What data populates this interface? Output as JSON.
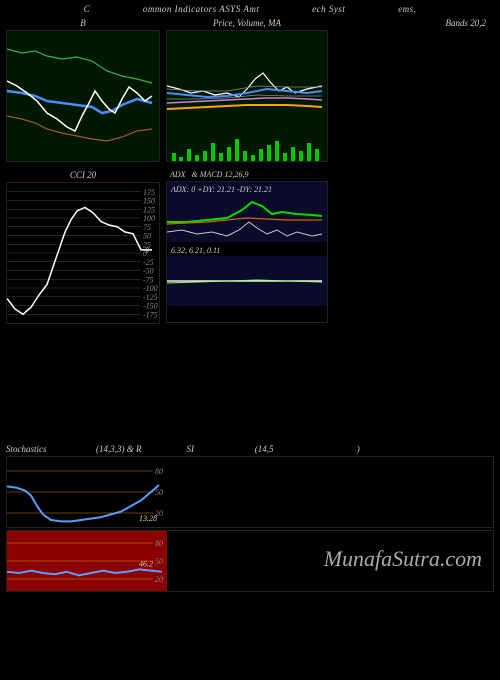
{
  "header": {
    "left": "C",
    "mid1": "ommon Indicators ASYS Amt",
    "mid2": "ech Syst",
    "right": "ems,"
  },
  "panels": {
    "bbands": {
      "title": "B",
      "title_right": "Bands 20,2",
      "width": 152,
      "height": 130,
      "bg": "#001800",
      "series": {
        "upper": {
          "color": "#3cb043",
          "width": 1.2,
          "points": [
            [
              0,
              18
            ],
            [
              15,
              22
            ],
            [
              28,
              20
            ],
            [
              40,
              25
            ],
            [
              55,
              28
            ],
            [
              70,
              26
            ],
            [
              85,
              30
            ],
            [
              100,
              40
            ],
            [
              115,
              45
            ],
            [
              130,
              48
            ],
            [
              145,
              52
            ]
          ]
        },
        "mid": {
          "color": "#4a8cff",
          "width": 2.5,
          "points": [
            [
              0,
              60
            ],
            [
              15,
              62
            ],
            [
              28,
              65
            ],
            [
              40,
              70
            ],
            [
              55,
              72
            ],
            [
              70,
              74
            ],
            [
              85,
              76
            ],
            [
              95,
              82
            ],
            [
              105,
              80
            ],
            [
              115,
              74
            ],
            [
              130,
              68
            ],
            [
              145,
              72
            ]
          ]
        },
        "lower": {
          "color": "#a05a2c",
          "width": 1.2,
          "points": [
            [
              0,
              85
            ],
            [
              15,
              88
            ],
            [
              28,
              92
            ],
            [
              40,
              98
            ],
            [
              55,
              102
            ],
            [
              70,
              105
            ],
            [
              85,
              108
            ],
            [
              100,
              110
            ],
            [
              115,
              106
            ],
            [
              130,
              100
            ],
            [
              145,
              98
            ]
          ]
        },
        "price": {
          "color": "#ffffff",
          "width": 1.5,
          "points": [
            [
              0,
              50
            ],
            [
              10,
              55
            ],
            [
              20,
              62
            ],
            [
              30,
              70
            ],
            [
              40,
              82
            ],
            [
              50,
              88
            ],
            [
              60,
              96
            ],
            [
              68,
              100
            ],
            [
              75,
              85
            ],
            [
              82,
              72
            ],
            [
              88,
              60
            ],
            [
              95,
              70
            ],
            [
              102,
              78
            ],
            [
              108,
              82
            ],
            [
              115,
              68
            ],
            [
              122,
              56
            ],
            [
              130,
              62
            ],
            [
              138,
              70
            ],
            [
              145,
              65
            ]
          ]
        }
      }
    },
    "price_ma": {
      "title": "Price, Volume, MA",
      "width": 160,
      "height": 130,
      "bg": "#001800",
      "series": {
        "price": {
          "color": "#ffffff",
          "width": 1.2,
          "points": [
            [
              0,
              55
            ],
            [
              12,
              58
            ],
            [
              24,
              62
            ],
            [
              36,
              60
            ],
            [
              48,
              64
            ],
            [
              60,
              62
            ],
            [
              72,
              66
            ],
            [
              80,
              58
            ],
            [
              88,
              48
            ],
            [
              96,
              42
            ],
            [
              104,
              52
            ],
            [
              112,
              60
            ],
            [
              120,
              56
            ],
            [
              128,
              62
            ],
            [
              140,
              58
            ],
            [
              155,
              55
            ]
          ]
        },
        "ma1": {
          "color": "#4a8cff",
          "width": 2,
          "points": [
            [
              0,
              62
            ],
            [
              20,
              64
            ],
            [
              40,
              66
            ],
            [
              60,
              65
            ],
            [
              80,
              62
            ],
            [
              100,
              58
            ],
            [
              120,
              60
            ],
            [
              140,
              62
            ],
            [
              155,
              60
            ]
          ]
        },
        "ma2": {
          "color": "#ffa500",
          "width": 2,
          "points": [
            [
              0,
              78
            ],
            [
              20,
              77
            ],
            [
              40,
              76
            ],
            [
              60,
              75
            ],
            [
              80,
              74
            ],
            [
              100,
              74
            ],
            [
              120,
              74
            ],
            [
              140,
              75
            ],
            [
              155,
              76
            ]
          ]
        },
        "ma3": {
          "color": "#c882d8",
          "width": 1.5,
          "points": [
            [
              0,
              72
            ],
            [
              20,
              71
            ],
            [
              40,
              70
            ],
            [
              60,
              69
            ],
            [
              80,
              68
            ],
            [
              100,
              67
            ],
            [
              120,
              67
            ],
            [
              140,
              68
            ],
            [
              155,
              69
            ]
          ]
        },
        "ma_thin1": {
          "color": "#888",
          "width": 0.8,
          "points": [
            [
              0,
              58
            ],
            [
              30,
              60
            ],
            [
              60,
              60
            ],
            [
              90,
              55
            ],
            [
              120,
              56
            ],
            [
              155,
              56
            ]
          ]
        },
        "ma_thin2": {
          "color": "#888",
          "width": 0.8,
          "points": [
            [
              0,
              68
            ],
            [
              30,
              68
            ],
            [
              60,
              67
            ],
            [
              90,
              64
            ],
            [
              120,
              65
            ],
            [
              155,
              65
            ]
          ]
        }
      },
      "volume": {
        "color": "#00c800",
        "bars": [
          [
            5,
            8
          ],
          [
            12,
            4
          ],
          [
            20,
            12
          ],
          [
            28,
            6
          ],
          [
            36,
            10
          ],
          [
            44,
            18
          ],
          [
            52,
            8
          ],
          [
            60,
            14
          ],
          [
            68,
            22
          ],
          [
            76,
            10
          ],
          [
            84,
            6
          ],
          [
            92,
            12
          ],
          [
            100,
            16
          ],
          [
            108,
            20
          ],
          [
            116,
            8
          ],
          [
            124,
            14
          ],
          [
            132,
            10
          ],
          [
            140,
            18
          ],
          [
            148,
            12
          ]
        ]
      }
    },
    "cci": {
      "title": "CCI 20",
      "width": 152,
      "height": 140,
      "bg": "#000",
      "ylim": [
        -200,
        200
      ],
      "gridlines": [
        175,
        150,
        125,
        100,
        75,
        50,
        25,
        0,
        -25,
        -50,
        -75,
        -100,
        -125,
        -150,
        -175
      ],
      "grid_color": "#2a5a2a",
      "last_value": "9",
      "series": {
        "color": "#ffffff",
        "width": 1.5,
        "points": [
          [
            0,
            -130
          ],
          [
            8,
            -160
          ],
          [
            16,
            -175
          ],
          [
            24,
            -155
          ],
          [
            32,
            -120
          ],
          [
            40,
            -90
          ],
          [
            46,
            -40
          ],
          [
            52,
            10
          ],
          [
            58,
            60
          ],
          [
            64,
            95
          ],
          [
            70,
            120
          ],
          [
            78,
            130
          ],
          [
            86,
            115
          ],
          [
            94,
            90
          ],
          [
            102,
            80
          ],
          [
            110,
            75
          ],
          [
            118,
            60
          ],
          [
            126,
            55
          ],
          [
            134,
            9
          ],
          [
            145,
            9
          ]
        ]
      }
    },
    "adx_macd": {
      "title_adx": "ADX: 0   +DY: 21.21 -DY: 21.21",
      "title_macd": "6.32,  6.21,  0.11",
      "width": 160,
      "height": 140,
      "adx": {
        "bg": "#0a0a2a",
        "h": 60,
        "series": {
          "green": {
            "color": "#00e000",
            "width": 2,
            "points": [
              [
                0,
                40
              ],
              [
                20,
                40
              ],
              [
                40,
                38
              ],
              [
                60,
                36
              ],
              [
                75,
                28
              ],
              [
                85,
                20
              ],
              [
                95,
                24
              ],
              [
                105,
                32
              ],
              [
                115,
                30
              ],
              [
                130,
                32
              ],
              [
                145,
                33
              ],
              [
                155,
                34
              ]
            ]
          },
          "red": {
            "color": "#cc6600",
            "width": 1.2,
            "points": [
              [
                0,
                42
              ],
              [
                20,
                41
              ],
              [
                40,
                40
              ],
              [
                60,
                38
              ],
              [
                80,
                36
              ],
              [
                100,
                37
              ],
              [
                120,
                38
              ],
              [
                140,
                38
              ],
              [
                155,
                38
              ]
            ]
          },
          "white": {
            "color": "#ccc",
            "width": 1,
            "points": [
              [
                0,
                50
              ],
              [
                15,
                48
              ],
              [
                30,
                52
              ],
              [
                45,
                50
              ],
              [
                60,
                54
              ],
              [
                72,
                48
              ],
              [
                82,
                40
              ],
              [
                90,
                46
              ],
              [
                100,
                52
              ],
              [
                110,
                48
              ],
              [
                120,
                54
              ],
              [
                130,
                50
              ],
              [
                145,
                54
              ],
              [
                155,
                52
              ]
            ]
          }
        }
      },
      "macd": {
        "bg": "#0a0a2a",
        "h": 50,
        "series": {
          "line1": {
            "color": "#eee",
            "width": 1.5,
            "points": [
              [
                0,
                25
              ],
              [
                30,
                25
              ],
              [
                60,
                25
              ],
              [
                90,
                25
              ],
              [
                120,
                25
              ],
              [
                155,
                25
              ]
            ]
          },
          "line2": {
            "color": "#a0ff60",
            "width": 1,
            "points": [
              [
                0,
                27
              ],
              [
                30,
                26
              ],
              [
                60,
                25
              ],
              [
                90,
                24
              ],
              [
                120,
                25
              ],
              [
                155,
                26
              ]
            ]
          }
        }
      }
    },
    "stochastics": {
      "title": "Stochastics                      (14,3,3) & R                    SI                           (14,5                                     )",
      "width": 160,
      "height": 70,
      "bg": "#000",
      "gridlines": [
        80,
        50,
        20
      ],
      "grid_color": "#885500",
      "last_value": "13.28",
      "series": {
        "color": "#5a9cff",
        "width": 2,
        "points": [
          [
            0,
            58
          ],
          [
            10,
            56
          ],
          [
            18,
            52
          ],
          [
            24,
            45
          ],
          [
            30,
            30
          ],
          [
            36,
            18
          ],
          [
            44,
            10
          ],
          [
            54,
            8
          ],
          [
            64,
            8
          ],
          [
            74,
            10
          ],
          [
            84,
            12
          ],
          [
            94,
            14
          ],
          [
            104,
            18
          ],
          [
            114,
            22
          ],
          [
            124,
            30
          ],
          [
            134,
            38
          ],
          [
            144,
            50
          ],
          [
            152,
            60
          ]
        ]
      }
    },
    "rsi": {
      "width": 160,
      "height": 60,
      "bg": "#8b0000",
      "gridlines": [
        80,
        50,
        20
      ],
      "grid_color": "#bb6600",
      "last_value": "46.2",
      "series": {
        "color": "#5a9cff",
        "width": 2,
        "points": [
          [
            0,
            32
          ],
          [
            12,
            30
          ],
          [
            24,
            34
          ],
          [
            36,
            30
          ],
          [
            48,
            28
          ],
          [
            60,
            32
          ],
          [
            72,
            26
          ],
          [
            84,
            30
          ],
          [
            96,
            34
          ],
          [
            108,
            30
          ],
          [
            120,
            32
          ],
          [
            132,
            36
          ],
          [
            144,
            34
          ],
          [
            155,
            32
          ]
        ]
      }
    }
  },
  "watermark": "MunafaSutra.com"
}
